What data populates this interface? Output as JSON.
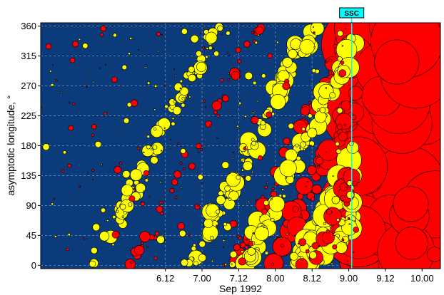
{
  "chart_data": {
    "type": "scatter",
    "title": "",
    "xlabel": "Sep 1992",
    "ylabel": "asymptotic longitude, °",
    "x_ticks": [
      "6.12",
      "7.00",
      "7.12",
      "8.00",
      "8.12",
      "9.00",
      "9.12",
      "10.00"
    ],
    "x_range_hours": [
      4.8,
      10.25
    ],
    "y_ticks": [
      0,
      45,
      90,
      135,
      180,
      225,
      270,
      315,
      360
    ],
    "ylim": [
      -5,
      365
    ],
    "grid": true,
    "plot_background": "#0c3b7c",
    "grid_color": "#6f8fb3",
    "series": [
      {
        "name": "",
        "color": "#ffff00"
      },
      {
        "name": "",
        "color": "#ff0000"
      }
    ],
    "annotation": {
      "label": "SSC",
      "x": 9.04,
      "box_color": "#00ffff",
      "line_color": "#00ffff"
    },
    "storm_region_color": "#ff0000",
    "storm_region_start": 9.1
  }
}
